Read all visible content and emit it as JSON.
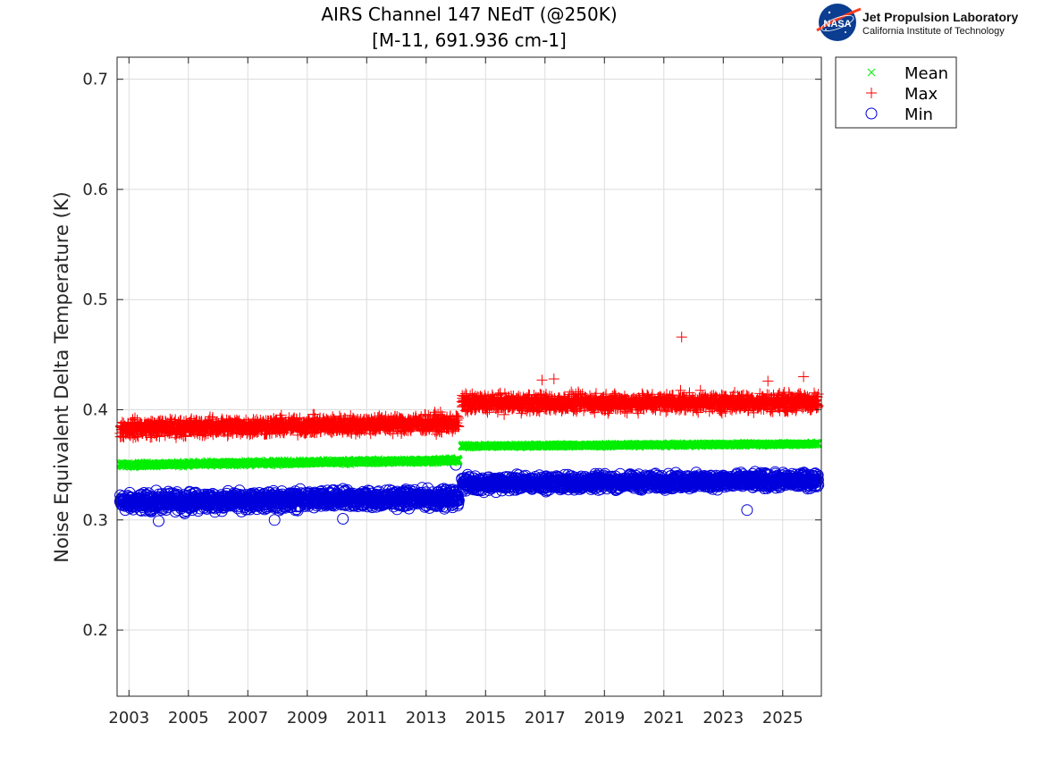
{
  "header": {
    "logo": {
      "icon": "nasa-meatball-logo",
      "org_name": "Jet Propulsion Laboratory",
      "org_subtitle": "California Institute of Technology",
      "logo_text": "NASA"
    }
  },
  "chart_data": {
    "type": "scatter",
    "title": "AIRS Channel 147 NEdT (@250K)",
    "subtitle": "[M-11, 691.936 cm-1]",
    "xlabel": "",
    "ylabel": "Noise Equivalent Delta Temperature (K)",
    "xlim": [
      2002.6,
      2026.3
    ],
    "ylim": [
      0.14,
      0.72
    ],
    "x_ticks": [
      "2003",
      "2005",
      "2007",
      "2009",
      "2011",
      "2013",
      "2015",
      "2017",
      "2019",
      "2021",
      "2023",
      "2025"
    ],
    "y_ticks": [
      "0.2",
      "0.3",
      "0.4",
      "0.5",
      "0.6",
      "0.7"
    ],
    "grid": true,
    "legend_position": "outside-top-right",
    "legend": [
      "Mean",
      "Max",
      "Min"
    ],
    "series": [
      {
        "name": "Mean",
        "marker": "x",
        "color": "#00ee00",
        "segments": [
          {
            "x_start": 2002.7,
            "x_end": 2014.1,
            "y_start": 0.35,
            "y_end": 0.354,
            "spread": 0.003
          },
          {
            "x_start": 2014.2,
            "x_end": 2026.2,
            "y_start": 0.367,
            "y_end": 0.369,
            "spread": 0.002
          }
        ]
      },
      {
        "name": "Max",
        "marker": "+",
        "color": "#ff0000",
        "segments": [
          {
            "x_start": 2002.7,
            "x_end": 2014.1,
            "y_start": 0.383,
            "y_end": 0.388,
            "spread": 0.012
          },
          {
            "x_start": 2014.2,
            "x_end": 2026.2,
            "y_start": 0.406,
            "y_end": 0.407,
            "spread": 0.012
          }
        ],
        "outliers": [
          [
            2021.6,
            0.466
          ],
          [
            2025.7,
            0.43
          ],
          [
            2017.3,
            0.428
          ],
          [
            2016.9,
            0.427
          ],
          [
            2024.5,
            0.426
          ]
        ]
      },
      {
        "name": "Min",
        "marker": "o",
        "color": "#0000dd",
        "segments": [
          {
            "x_start": 2002.7,
            "x_end": 2014.1,
            "y_start": 0.316,
            "y_end": 0.32,
            "spread": 0.012
          },
          {
            "x_start": 2014.2,
            "x_end": 2026.2,
            "y_start": 0.333,
            "y_end": 0.336,
            "spread": 0.01
          }
        ],
        "outliers": [
          [
            2023.8,
            0.309
          ],
          [
            2004.0,
            0.299
          ],
          [
            2007.9,
            0.3
          ],
          [
            2010.2,
            0.301
          ],
          [
            2014.0,
            0.35
          ]
        ]
      }
    ]
  }
}
